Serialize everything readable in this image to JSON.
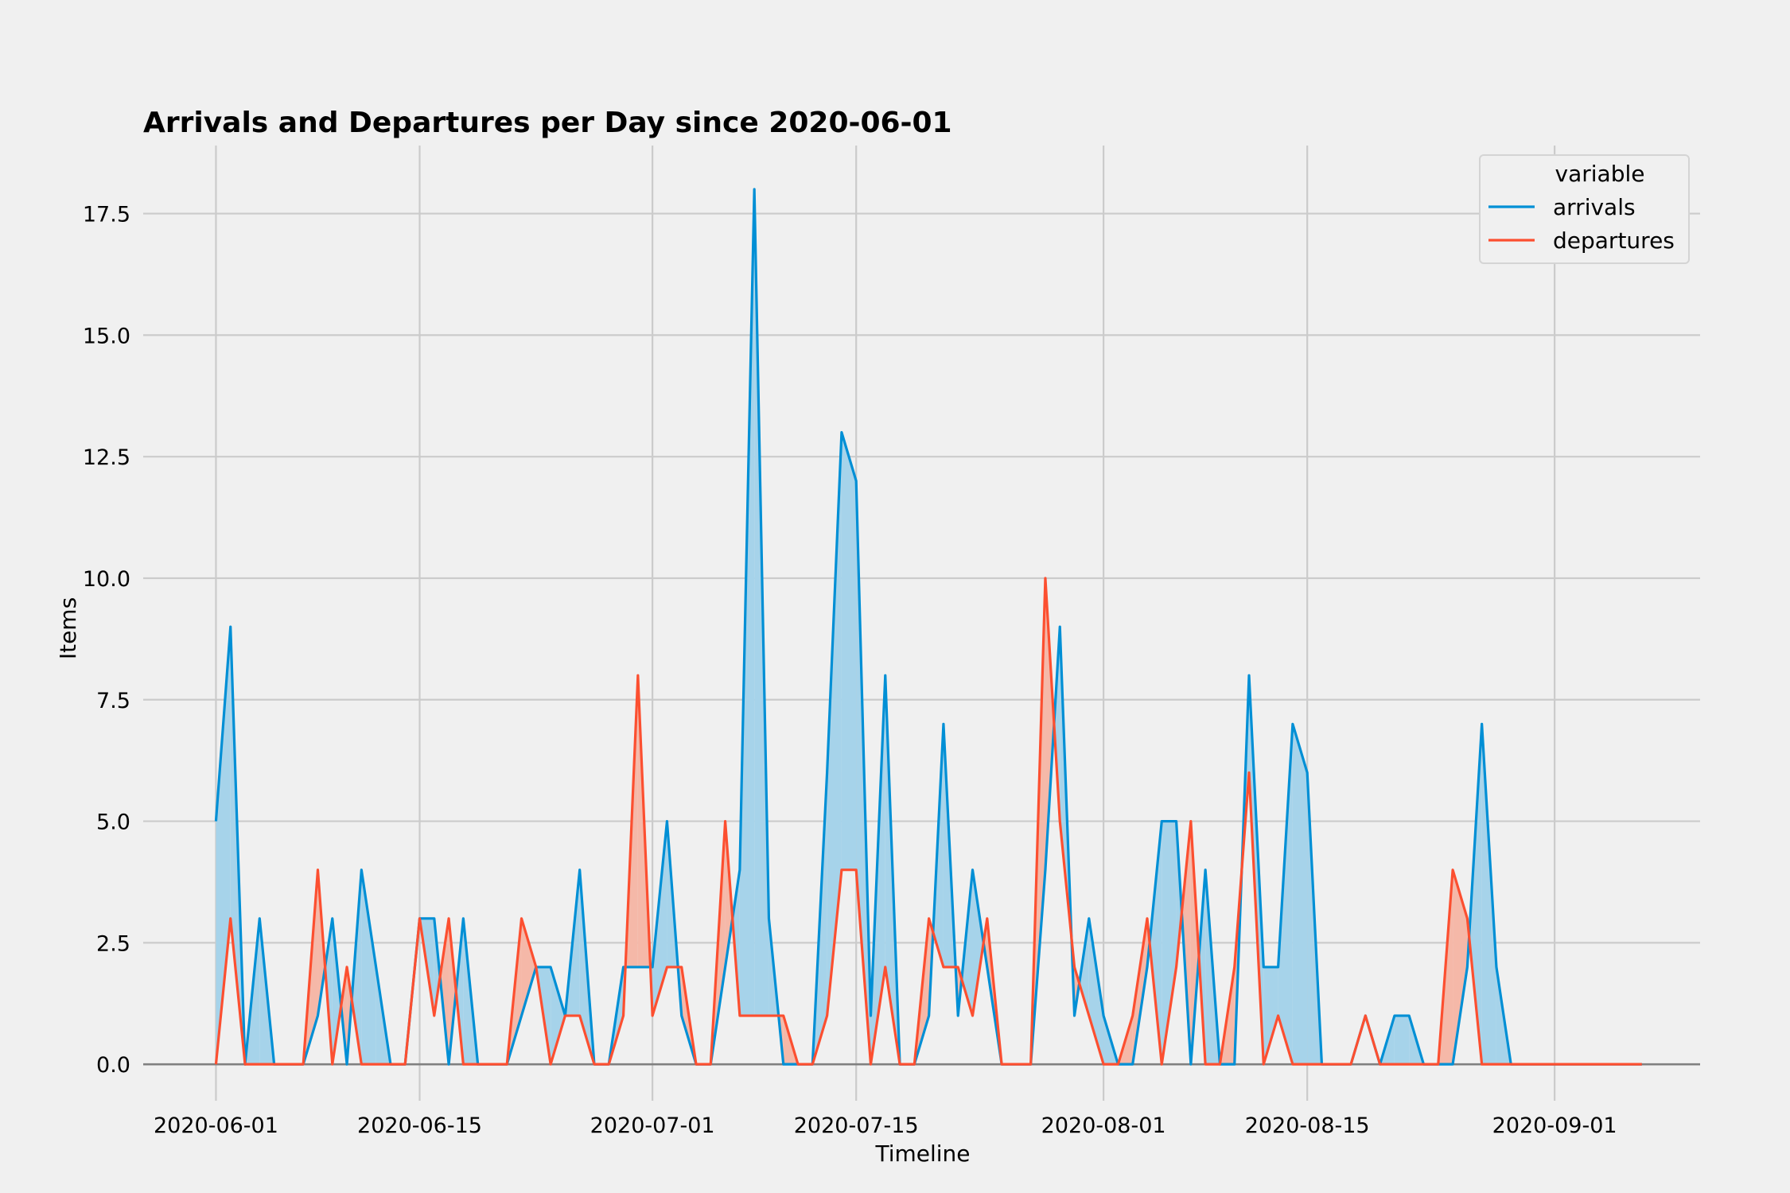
{
  "chart_data": {
    "type": "area",
    "title": "Arrivals and Departures per Day since 2020-06-01",
    "xlabel": "Timeline",
    "ylabel": "Items",
    "x_start": "2020-06-01",
    "x_end": "2020-09-07",
    "xlim": [
      "2020-05-27",
      "2020-09-11"
    ],
    "ylim": [
      -0.75,
      18.9
    ],
    "x_ticks": [
      "2020-06-01",
      "2020-06-15",
      "2020-07-01",
      "2020-07-15",
      "2020-08-01",
      "2020-08-15",
      "2020-09-01"
    ],
    "y_ticks": [
      "0.0",
      "2.5",
      "5.0",
      "7.5",
      "10.0",
      "12.5",
      "15.0",
      "17.5"
    ],
    "grid": true,
    "legend": {
      "title": "variable",
      "position": "top-right"
    },
    "fill_between": {
      "above_color": "#a6d3ea",
      "below_color": "#f5b8a8"
    },
    "series": [
      {
        "name": "arrivals",
        "color": "#008fd5",
        "values": [
          5,
          9,
          0,
          3,
          0,
          0,
          0,
          1,
          3,
          0,
          4,
          2,
          0,
          0,
          3,
          3,
          0,
          3,
          0,
          0,
          0,
          1,
          2,
          2,
          1,
          4,
          0,
          0,
          2,
          2,
          2,
          5,
          1,
          0,
          0,
          2,
          4,
          18,
          3,
          0,
          0,
          0,
          6,
          13,
          12,
          1,
          8,
          0,
          0,
          1,
          7,
          1,
          4,
          2,
          0,
          0,
          0,
          4,
          9,
          1,
          3,
          1,
          0,
          0,
          2,
          5,
          5,
          0,
          4,
          0,
          0,
          8,
          2,
          2,
          7,
          6,
          0,
          0,
          0,
          1,
          0,
          1,
          1,
          0,
          0,
          0,
          2,
          7,
          2,
          0,
          0,
          0,
          0,
          0,
          0,
          0,
          0,
          0,
          0
        ]
      },
      {
        "name": "departures",
        "color": "#fc4f30",
        "values": [
          0,
          3,
          0,
          0,
          0,
          0,
          0,
          4,
          0,
          2,
          0,
          0,
          0,
          0,
          3,
          1,
          3,
          0,
          0,
          0,
          0,
          3,
          2,
          0,
          1,
          1,
          0,
          0,
          1,
          8,
          1,
          2,
          2,
          0,
          0,
          5,
          1,
          1,
          1,
          1,
          0,
          0,
          1,
          4,
          4,
          0,
          2,
          0,
          0,
          3,
          2,
          2,
          1,
          3,
          0,
          0,
          0,
          10,
          5,
          2,
          1,
          0,
          0,
          1,
          3,
          0,
          2,
          5,
          0,
          0,
          2,
          6,
          0,
          1,
          0,
          0,
          0,
          0,
          0,
          1,
          0,
          0,
          0,
          0,
          0,
          4,
          3,
          0,
          0,
          0,
          0,
          0,
          0,
          0,
          0,
          0,
          0,
          0,
          0
        ]
      }
    ]
  }
}
